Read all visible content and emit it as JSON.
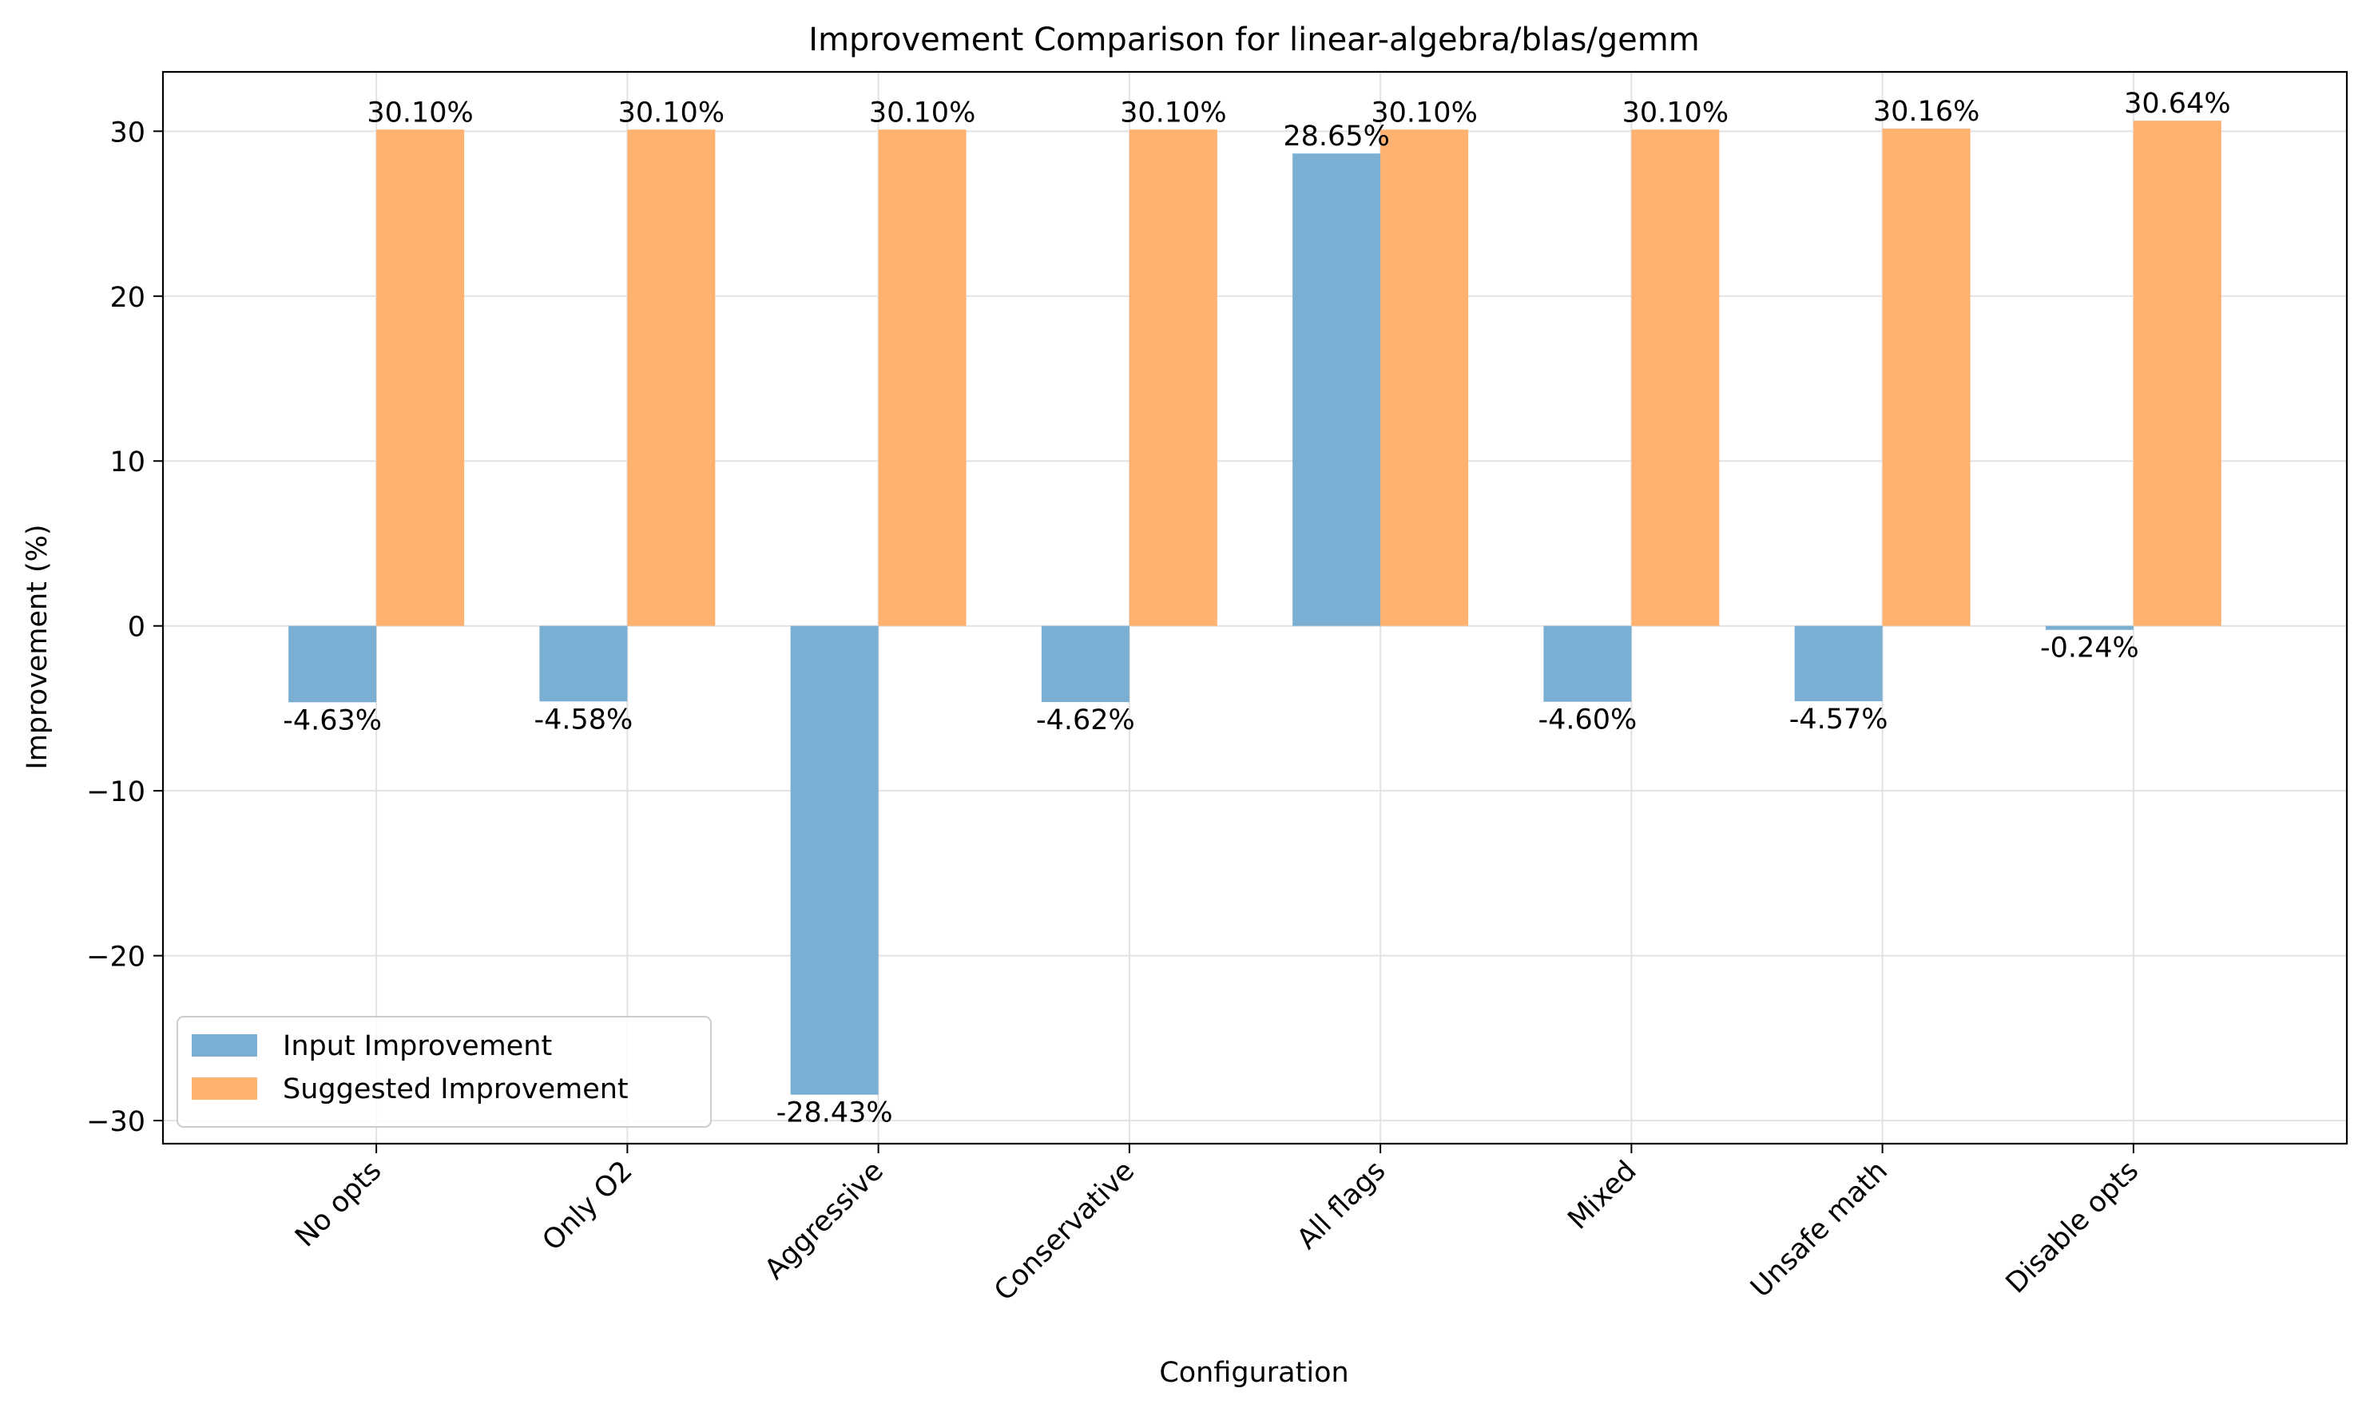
{
  "chart_data": {
    "type": "bar",
    "title": "Improvement Comparison for linear-algebra/blas/gemm",
    "xlabel": "Configuration",
    "ylabel": "Improvement (%)",
    "categories": [
      "No opts",
      "Only O2",
      "Aggressive",
      "Conservative",
      "All flags",
      "Mixed",
      "Unsafe math",
      "Disable opts"
    ],
    "series": [
      {
        "name": "Input Improvement",
        "color": "#7aaed3",
        "values": [
          -4.63,
          -4.58,
          -28.43,
          -4.62,
          28.65,
          -4.6,
          -4.57,
          -0.24
        ],
        "labels": [
          "-4.63%",
          "-4.58%",
          "-28.43%",
          "-4.62%",
          "28.65%",
          "-4.60%",
          "-4.57%",
          "-0.24%"
        ]
      },
      {
        "name": "Suggested Improvement",
        "color": "#ffb26f",
        "values": [
          30.1,
          30.1,
          30.1,
          30.1,
          30.1,
          30.1,
          30.16,
          30.64
        ],
        "labels": [
          "30.10%",
          "30.10%",
          "30.10%",
          "30.10%",
          "30.10%",
          "30.10%",
          "30.16%",
          "30.64%"
        ]
      }
    ],
    "ylim": [
      -31.4,
      33.6
    ],
    "yticks": [
      30,
      20,
      10,
      0,
      -10,
      -20,
      -30
    ],
    "ytick_labels": [
      "30",
      "20",
      "10",
      "0",
      "−10",
      "−20",
      "−30"
    ],
    "grid": true,
    "legend_position": "lower-left"
  }
}
